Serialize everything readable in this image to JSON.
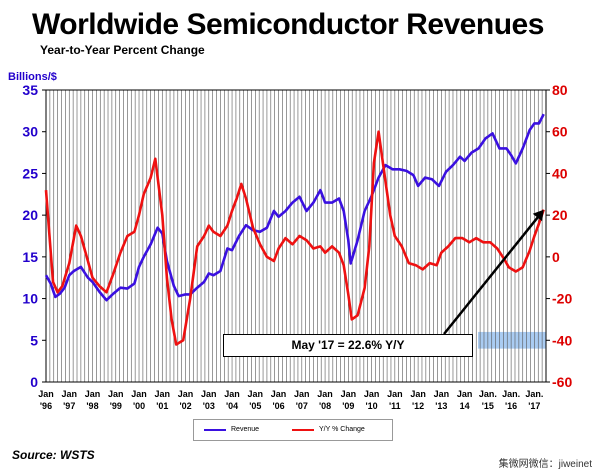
{
  "title": "Worldwide Semiconductor Revenues",
  "subtitle": "Year-to-Year Percent Change",
  "source": "Source: WSTS",
  "watermark": "集微网微信：jiweinet",
  "callout": "May '17 = 22.6% Y/Y",
  "colors": {
    "revenue": "#3a10e0",
    "yoy": "#ee1111",
    "left_axis": "#2200cc",
    "right_axis": "#dd0000",
    "highlight": "#aaccf2",
    "grid": "#555555"
  },
  "chart_data": {
    "type": "line",
    "title": "Worldwide Semiconductor Revenues",
    "subtitle": "Year-to-Year Percent Change",
    "ylabel": "Billions/$",
    "ylim": [
      0,
      35
    ],
    "y2lim": [
      -60,
      80
    ],
    "yticks": [
      0,
      5,
      10,
      15,
      20,
      25,
      30,
      35
    ],
    "y2ticks": [
      -60,
      -40,
      -20,
      0,
      20,
      40,
      60,
      80
    ],
    "xlim": [
      1996.0,
      2017.5
    ],
    "xticks": [
      {
        "x": 1996,
        "top": "Jan",
        "bottom": "'96"
      },
      {
        "x": 1997,
        "top": "Jan",
        "bottom": "'97"
      },
      {
        "x": 1998,
        "top": "Jan",
        "bottom": "'98"
      },
      {
        "x": 1999,
        "top": "Jan",
        "bottom": "'99"
      },
      {
        "x": 2000,
        "top": "Jan",
        "bottom": "'00"
      },
      {
        "x": 2001,
        "top": "Jan",
        "bottom": "'01"
      },
      {
        "x": 2002,
        "top": "Jan",
        "bottom": "'02"
      },
      {
        "x": 2003,
        "top": "Jan",
        "bottom": "'03"
      },
      {
        "x": 2004,
        "top": "Jan",
        "bottom": "'04"
      },
      {
        "x": 2005,
        "top": "Jan",
        "bottom": "'05"
      },
      {
        "x": 2006,
        "top": "Jan",
        "bottom": "'06"
      },
      {
        "x": 2007,
        "top": "Jan",
        "bottom": "'07"
      },
      {
        "x": 2008,
        "top": "Jan",
        "bottom": "'08"
      },
      {
        "x": 2009,
        "top": "Jan",
        "bottom": "'09"
      },
      {
        "x": 2010,
        "top": "Jan",
        "bottom": "'10"
      },
      {
        "x": 2011,
        "top": "Jan",
        "bottom": "'11"
      },
      {
        "x": 2012,
        "top": "Jan",
        "bottom": "'12"
      },
      {
        "x": 2013,
        "top": "Jan",
        "bottom": "'13"
      },
      {
        "x": 2014,
        "top": "Jan",
        "bottom": "14"
      },
      {
        "x": 2015,
        "top": "Jan.",
        "bottom": "'15"
      },
      {
        "x": 2016,
        "top": "Jan.",
        "bottom": "'16"
      },
      {
        "x": 2017,
        "top": "Jan.",
        "bottom": "'17"
      }
    ],
    "series": [
      {
        "name": "Revenue",
        "axis": "left",
        "points": [
          [
            1996.0,
            12.8
          ],
          [
            1996.2,
            11.8
          ],
          [
            1996.4,
            10.2
          ],
          [
            1996.6,
            10.6
          ],
          [
            1996.8,
            11.3
          ],
          [
            1997.0,
            12.8
          ],
          [
            1997.2,
            13.3
          ],
          [
            1997.5,
            13.8
          ],
          [
            1997.8,
            12.5
          ],
          [
            1998.0,
            12.0
          ],
          [
            1998.3,
            10.8
          ],
          [
            1998.6,
            9.8
          ],
          [
            1998.9,
            10.6
          ],
          [
            1999.2,
            11.3
          ],
          [
            1999.5,
            11.2
          ],
          [
            1999.8,
            11.8
          ],
          [
            2000.0,
            13.8
          ],
          [
            2000.2,
            15.0
          ],
          [
            2000.5,
            16.5
          ],
          [
            2000.8,
            18.5
          ],
          [
            2001.0,
            17.8
          ],
          [
            2001.2,
            14.5
          ],
          [
            2001.5,
            11.5
          ],
          [
            2001.7,
            10.3
          ],
          [
            2002.0,
            10.5
          ],
          [
            2002.2,
            10.5
          ],
          [
            2002.5,
            11.3
          ],
          [
            2002.8,
            12.0
          ],
          [
            2003.0,
            13.0
          ],
          [
            2003.2,
            12.8
          ],
          [
            2003.5,
            13.3
          ],
          [
            2003.8,
            16.0
          ],
          [
            2004.0,
            15.8
          ],
          [
            2004.3,
            17.5
          ],
          [
            2004.6,
            18.8
          ],
          [
            2004.9,
            18.2
          ],
          [
            2005.2,
            18.0
          ],
          [
            2005.5,
            18.5
          ],
          [
            2005.8,
            20.5
          ],
          [
            2006.0,
            19.8
          ],
          [
            2006.3,
            20.5
          ],
          [
            2006.6,
            21.5
          ],
          [
            2006.9,
            22.2
          ],
          [
            2007.2,
            20.5
          ],
          [
            2007.5,
            21.5
          ],
          [
            2007.8,
            23.0
          ],
          [
            2008.0,
            21.5
          ],
          [
            2008.3,
            21.5
          ],
          [
            2008.6,
            22.0
          ],
          [
            2008.8,
            20.5
          ],
          [
            2009.0,
            17.0
          ],
          [
            2009.1,
            14.2
          ],
          [
            2009.4,
            17.0
          ],
          [
            2009.7,
            20.5
          ],
          [
            2010.0,
            22.3
          ],
          [
            2010.3,
            24.5
          ],
          [
            2010.6,
            26.0
          ],
          [
            2010.9,
            25.5
          ],
          [
            2011.2,
            25.5
          ],
          [
            2011.5,
            25.3
          ],
          [
            2011.8,
            24.8
          ],
          [
            2012.0,
            23.5
          ],
          [
            2012.3,
            24.5
          ],
          [
            2012.6,
            24.3
          ],
          [
            2012.9,
            23.5
          ],
          [
            2013.2,
            25.2
          ],
          [
            2013.5,
            26.0
          ],
          [
            2013.8,
            27.0
          ],
          [
            2014.0,
            26.5
          ],
          [
            2014.3,
            27.5
          ],
          [
            2014.6,
            28.0
          ],
          [
            2014.9,
            29.2
          ],
          [
            2015.2,
            29.8
          ],
          [
            2015.5,
            28.0
          ],
          [
            2015.8,
            28.0
          ],
          [
            2016.0,
            27.2
          ],
          [
            2016.2,
            26.2
          ],
          [
            2016.5,
            28.0
          ],
          [
            2016.8,
            30.2
          ],
          [
            2017.0,
            31.0
          ],
          [
            2017.2,
            31.0
          ],
          [
            2017.4,
            32.1
          ]
        ]
      },
      {
        "name": "Y/Y % Change",
        "axis": "right",
        "points": [
          [
            1996.0,
            32
          ],
          [
            1996.15,
            10
          ],
          [
            1996.3,
            -12
          ],
          [
            1996.5,
            -17
          ],
          [
            1996.7,
            -14
          ],
          [
            1997.0,
            -3
          ],
          [
            1997.3,
            15
          ],
          [
            1997.5,
            10
          ],
          [
            1997.8,
            -2
          ],
          [
            1998.0,
            -10
          ],
          [
            1998.3,
            -14
          ],
          [
            1998.6,
            -17
          ],
          [
            1998.9,
            -8
          ],
          [
            1999.2,
            2
          ],
          [
            1999.5,
            10
          ],
          [
            1999.8,
            12
          ],
          [
            2000.0,
            20
          ],
          [
            2000.2,
            30
          ],
          [
            2000.5,
            38
          ],
          [
            2000.7,
            47
          ],
          [
            2001.0,
            20
          ],
          [
            2001.2,
            -10
          ],
          [
            2001.4,
            -30
          ],
          [
            2001.6,
            -42
          ],
          [
            2001.9,
            -40
          ],
          [
            2002.2,
            -20
          ],
          [
            2002.5,
            5
          ],
          [
            2002.8,
            10
          ],
          [
            2003.0,
            15
          ],
          [
            2003.2,
            12
          ],
          [
            2003.5,
            10
          ],
          [
            2003.8,
            15
          ],
          [
            2004.0,
            22
          ],
          [
            2004.2,
            28
          ],
          [
            2004.4,
            35
          ],
          [
            2004.6,
            28
          ],
          [
            2004.9,
            14
          ],
          [
            2005.2,
            6
          ],
          [
            2005.5,
            0
          ],
          [
            2005.8,
            -2
          ],
          [
            2006.0,
            4
          ],
          [
            2006.3,
            9
          ],
          [
            2006.6,
            6
          ],
          [
            2006.9,
            10
          ],
          [
            2007.2,
            8
          ],
          [
            2007.5,
            4
          ],
          [
            2007.8,
            5
          ],
          [
            2008.0,
            2
          ],
          [
            2008.3,
            5
          ],
          [
            2008.6,
            2
          ],
          [
            2008.8,
            -4
          ],
          [
            2009.0,
            -18
          ],
          [
            2009.15,
            -30
          ],
          [
            2009.4,
            -28
          ],
          [
            2009.7,
            -15
          ],
          [
            2009.9,
            5
          ],
          [
            2010.1,
            45
          ],
          [
            2010.3,
            60
          ],
          [
            2010.5,
            44
          ],
          [
            2010.8,
            20
          ],
          [
            2011.0,
            10
          ],
          [
            2011.3,
            5
          ],
          [
            2011.6,
            -3
          ],
          [
            2011.9,
            -4
          ],
          [
            2012.2,
            -6
          ],
          [
            2012.5,
            -3
          ],
          [
            2012.8,
            -4
          ],
          [
            2013.0,
            2
          ],
          [
            2013.3,
            5
          ],
          [
            2013.6,
            9
          ],
          [
            2013.9,
            9
          ],
          [
            2014.2,
            7
          ],
          [
            2014.5,
            9
          ],
          [
            2014.8,
            7
          ],
          [
            2015.1,
            7
          ],
          [
            2015.4,
            4
          ],
          [
            2015.7,
            -1
          ],
          [
            2015.9,
            -5
          ],
          [
            2016.2,
            -7
          ],
          [
            2016.5,
            -5
          ],
          [
            2016.8,
            3
          ],
          [
            2017.0,
            10
          ],
          [
            2017.2,
            16
          ],
          [
            2017.4,
            22.6
          ]
        ]
      }
    ]
  }
}
